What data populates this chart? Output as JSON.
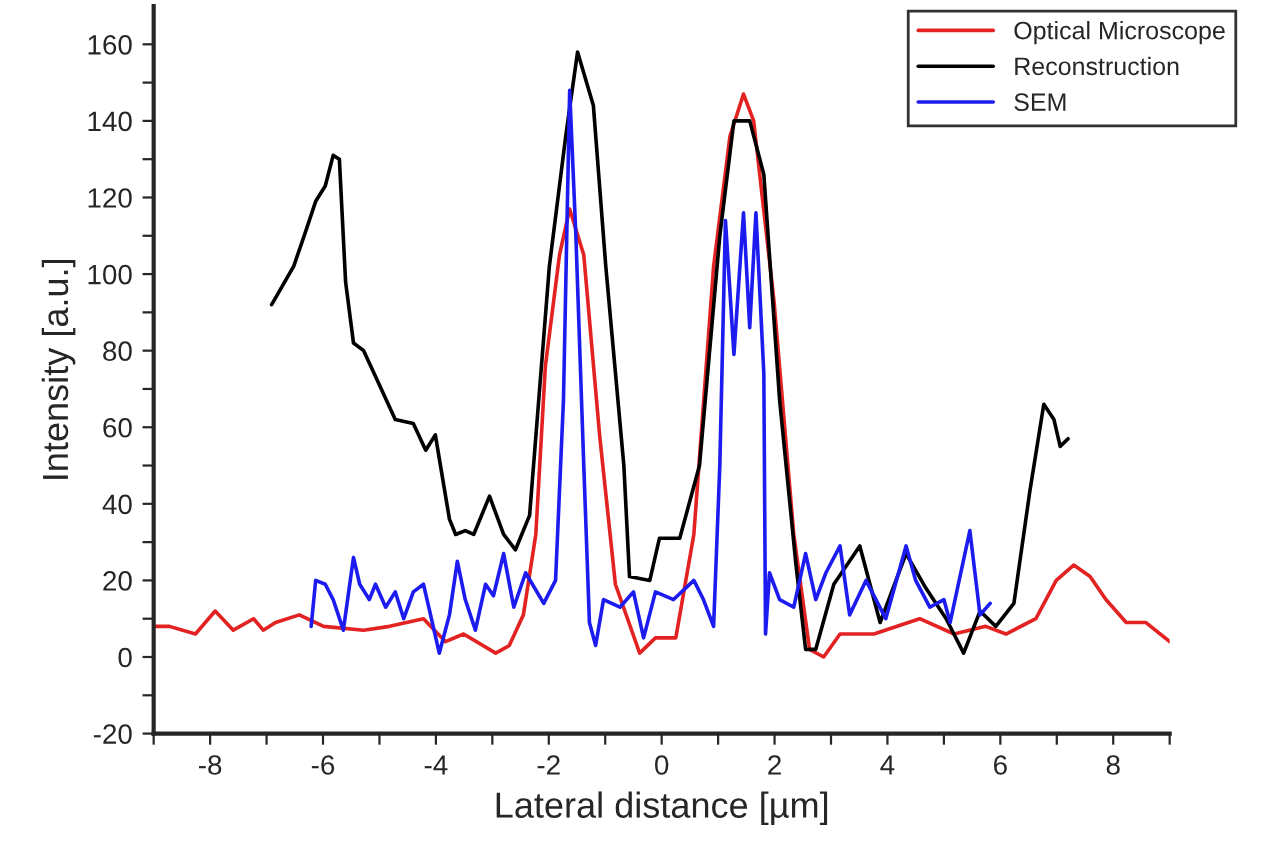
{
  "chart_data": {
    "type": "line",
    "xlabel": "Lateral distance [µm]",
    "ylabel": "Intensity [a.u.]",
    "xlim": [
      -9,
      9
    ],
    "ylim": [
      -20,
      170
    ],
    "xticks": [
      {
        "value": -9,
        "label": null
      },
      -8,
      {
        "value": -7,
        "label": null
      },
      -6,
      {
        "value": -5,
        "label": null
      },
      -4,
      {
        "value": -3,
        "label": null
      },
      -2,
      {
        "value": -1,
        "label": null
      },
      0,
      {
        "value": 1,
        "label": null
      },
      2,
      {
        "value": 3,
        "label": null
      },
      4,
      {
        "value": 5,
        "label": null
      },
      6,
      {
        "value": 7,
        "label": null
      },
      8,
      {
        "value": 9,
        "label": null
      }
    ],
    "yticks": [
      -20,
      {
        "value": -10,
        "label": null
      },
      0,
      {
        "value": 10,
        "label": null
      },
      20,
      {
        "value": 30,
        "label": null
      },
      40,
      {
        "value": 50,
        "label": null
      },
      60,
      {
        "value": 70,
        "label": null
      },
      80,
      {
        "value": 90,
        "label": null
      },
      100,
      {
        "value": 110,
        "label": null
      },
      120,
      {
        "value": 130,
        "label": null
      },
      140,
      {
        "value": 150,
        "label": null
      },
      160
    ],
    "grid": false,
    "legend": "top right",
    "marker": "none",
    "line_style": "solid",
    "series": [
      {
        "name": "Optical Microscope",
        "color": "#e32222",
        "x": [
          -8.97,
          -8.72,
          -8.26,
          -7.91,
          -7.59,
          -7.23,
          -7.06,
          -6.84,
          -6.42,
          -5.99,
          -5.28,
          -4.82,
          -4.22,
          -3.83,
          -3.51,
          -2.94,
          -2.7,
          -2.45,
          -2.23,
          -2.06,
          -1.81,
          -1.63,
          -1.38,
          -1.1,
          -0.82,
          -0.39,
          -0.11,
          0.25,
          0.57,
          0.92,
          1.21,
          1.45,
          1.63,
          1.99,
          2.34,
          2.62,
          2.87,
          3.16,
          3.76,
          4.57,
          5.18,
          5.74,
          6.1,
          6.63,
          6.99,
          7.3,
          7.59,
          7.87,
          8.23,
          8.58,
          9.0
        ],
        "values": [
          8,
          8,
          6,
          12,
          7,
          10,
          7,
          9,
          11,
          8,
          7,
          8,
          10,
          4,
          6,
          1,
          3,
          11,
          32,
          76,
          105,
          117,
          105,
          58,
          19,
          1,
          5,
          5,
          32,
          102,
          136,
          147,
          140,
          93,
          32,
          2,
          0,
          6,
          6,
          10,
          6,
          8,
          6,
          10,
          20,
          24,
          21,
          15,
          9,
          9,
          4
        ]
      },
      {
        "name": "Reconstruction",
        "color": "#000000",
        "x": [
          -6.91,
          -6.52,
          -6.31,
          -6.13,
          -5.96,
          -5.82,
          -5.71,
          -5.6,
          -5.46,
          -5.28,
          -5.0,
          -4.72,
          -4.4,
          -4.18,
          -4.01,
          -3.76,
          -3.65,
          -3.48,
          -3.33,
          -3.05,
          -2.8,
          -2.59,
          -2.34,
          -1.99,
          -1.7,
          -1.49,
          -1.21,
          -0.99,
          -0.67,
          -0.57,
          -0.21,
          -0.04,
          0.32,
          0.67,
          1.03,
          1.28,
          1.56,
          1.81,
          2.09,
          2.38,
          2.55,
          2.73,
          3.05,
          3.51,
          3.87,
          4.33,
          4.68,
          5.04,
          5.35,
          5.64,
          5.92,
          6.24,
          6.52,
          6.77,
          6.95,
          7.06,
          7.2
        ],
        "values": [
          92,
          102,
          111,
          119,
          123,
          131,
          130,
          98,
          82,
          80,
          71,
          62,
          61,
          54,
          58,
          36,
          32,
          33,
          32,
          42,
          32,
          28,
          37,
          102,
          136,
          158,
          144,
          102,
          50,
          21,
          20,
          31,
          31,
          50,
          110,
          140,
          140,
          126,
          67,
          24,
          2,
          2,
          19,
          29,
          9,
          27,
          18,
          10,
          1,
          12,
          8,
          14,
          43,
          66,
          62,
          55,
          57
        ]
      },
      {
        "name": "SEM",
        "color": "#1c1cf0",
        "x": [
          -6.21,
          -6.13,
          -5.96,
          -5.82,
          -5.64,
          -5.46,
          -5.35,
          -5.18,
          -5.07,
          -4.89,
          -4.72,
          -4.57,
          -4.4,
          -4.22,
          -4.11,
          -3.94,
          -3.76,
          -3.62,
          -3.48,
          -3.3,
          -3.12,
          -2.98,
          -2.8,
          -2.62,
          -2.41,
          -2.09,
          -1.88,
          -1.74,
          -1.63,
          -1.52,
          -1.38,
          -1.28,
          -1.17,
          -1.03,
          -0.74,
          -0.5,
          -0.32,
          -0.11,
          0.21,
          0.57,
          0.74,
          0.92,
          1.03,
          1.13,
          1.28,
          1.45,
          1.56,
          1.67,
          1.81,
          1.84,
          1.91,
          2.09,
          2.34,
          2.55,
          2.73,
          2.91,
          3.16,
          3.33,
          3.62,
          3.97,
          4.33,
          4.5,
          4.75,
          5.0,
          5.11,
          5.46,
          5.64,
          5.82
        ],
        "values": [
          8,
          20,
          19,
          15,
          7,
          26,
          19,
          15,
          19,
          13,
          17,
          10,
          17,
          19,
          12,
          1,
          11,
          25,
          15,
          7,
          19,
          16,
          27,
          13,
          22,
          14,
          20,
          67,
          148,
          110,
          50,
          9,
          3,
          15,
          13,
          17,
          5,
          17,
          15,
          20,
          15,
          8,
          50,
          114,
          79,
          116,
          86,
          116,
          74,
          6,
          22,
          15,
          13,
          27,
          15,
          22,
          29,
          11,
          20,
          10,
          29,
          20,
          13,
          15,
          9,
          33,
          11,
          14
        ]
      }
    ]
  }
}
